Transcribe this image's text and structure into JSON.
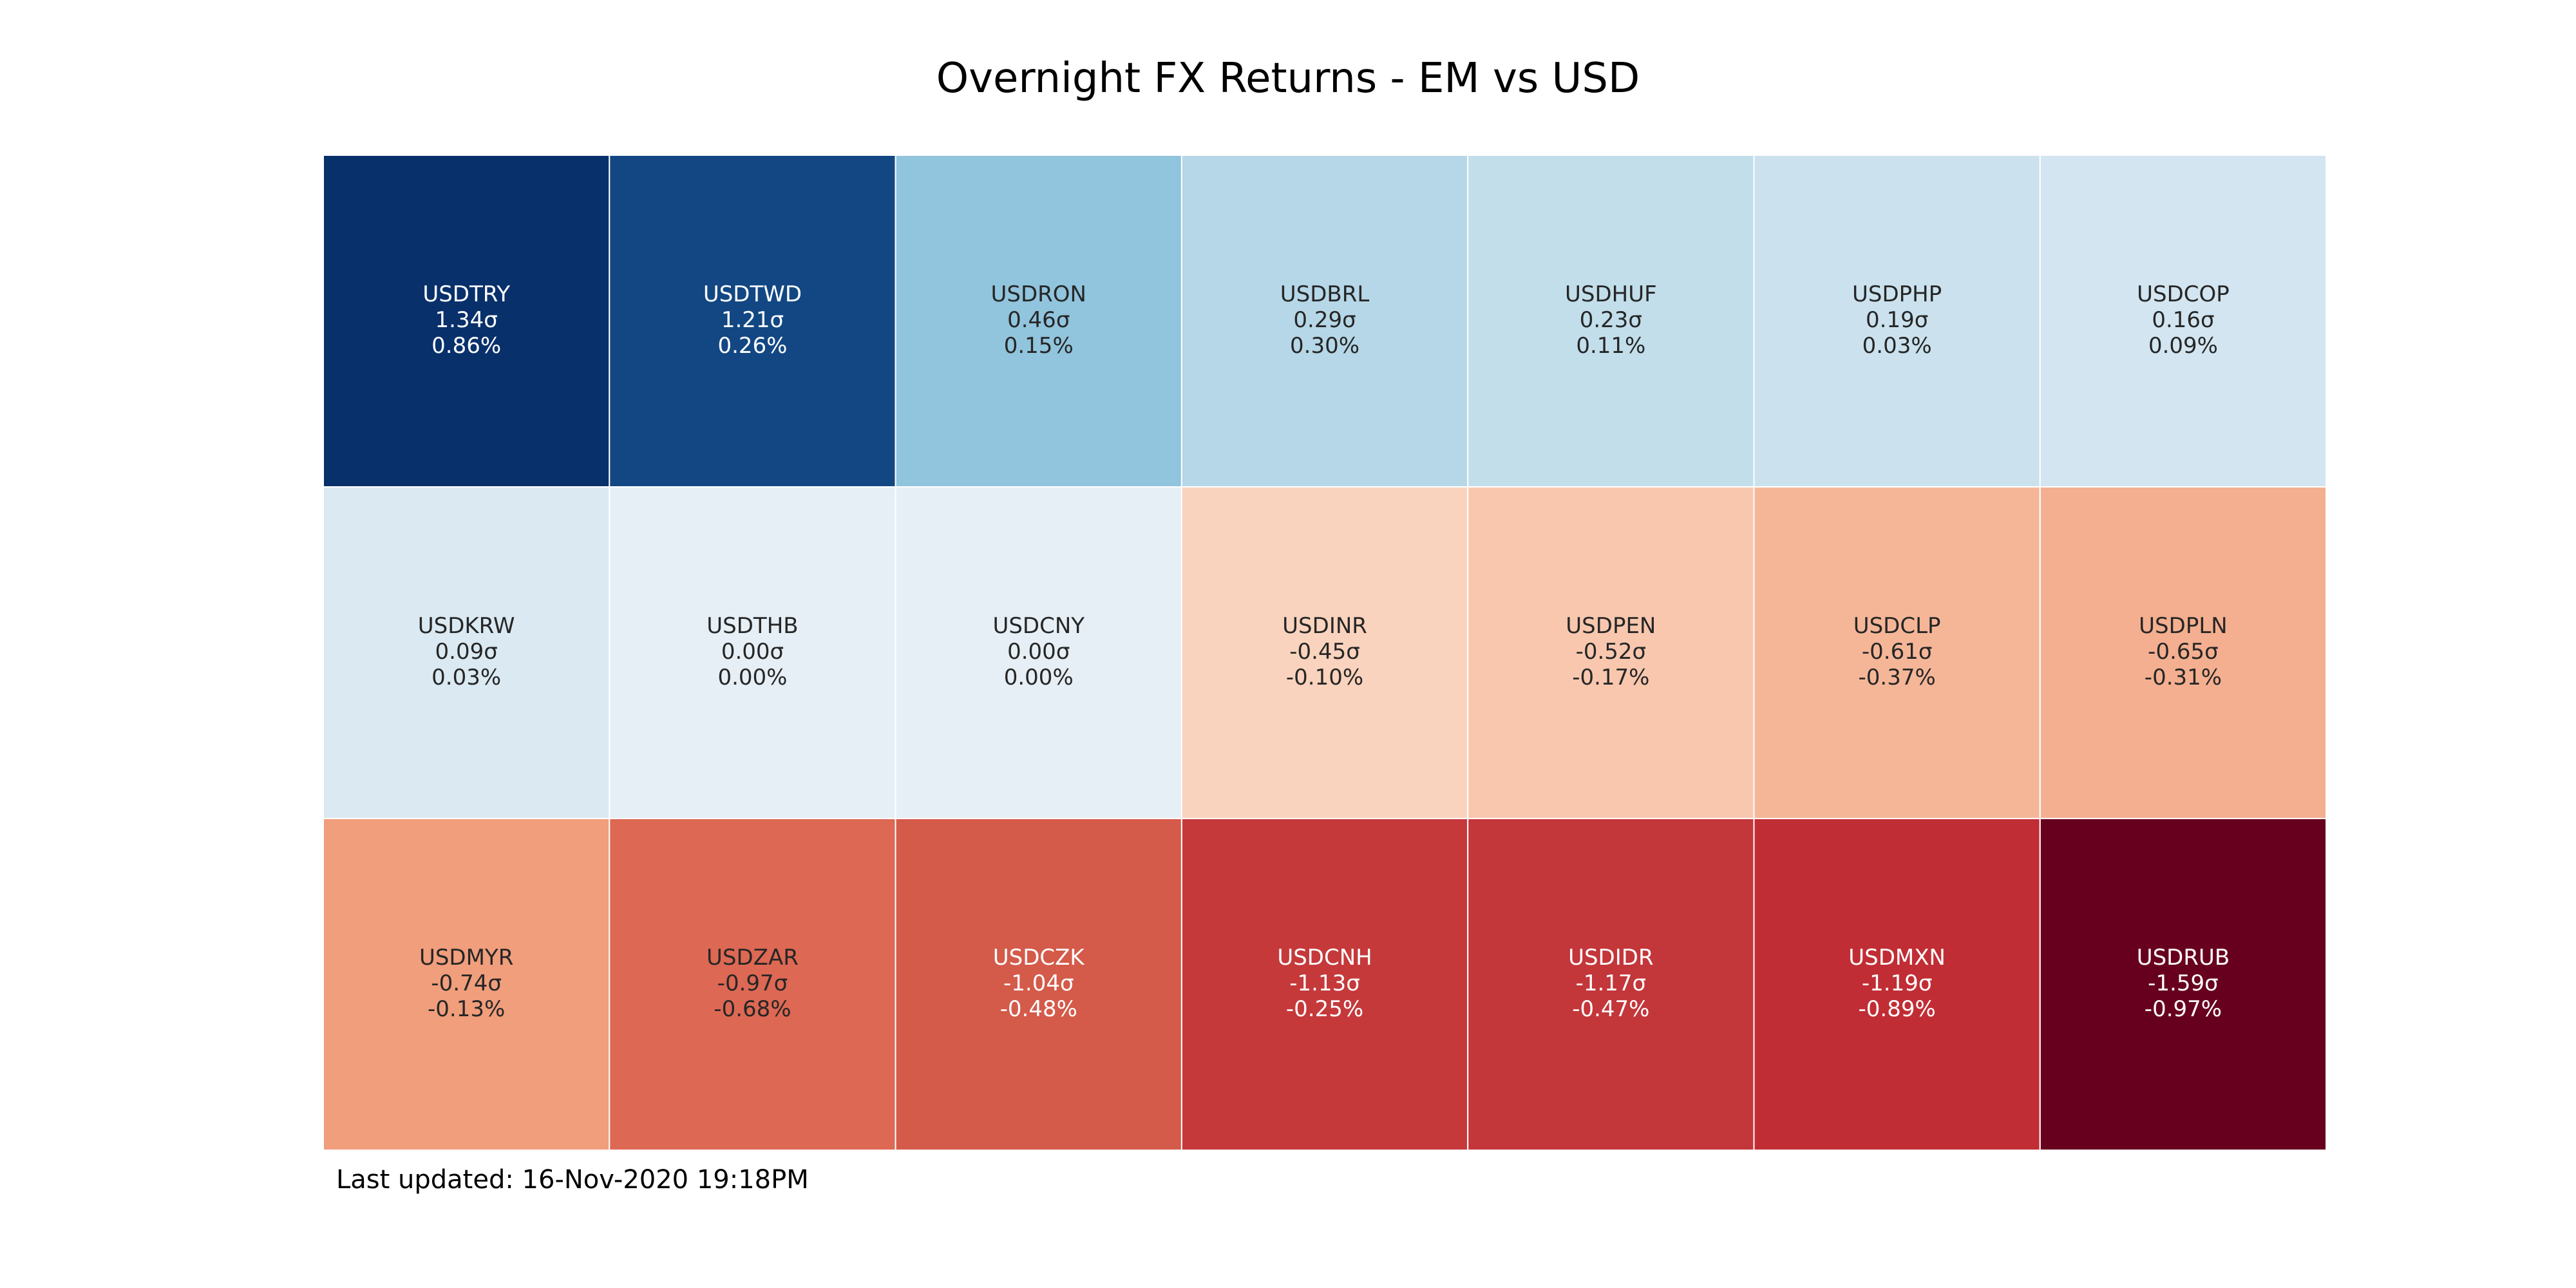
{
  "chart_data": {
    "type": "heatmap",
    "title": "Overnight FX Returns - EM vs USD",
    "footer": "Last updated: 16-Nov-2020 19:18PM",
    "grid": {
      "rows": 3,
      "cols": 7
    },
    "cells": [
      {
        "pair": "USDTRY",
        "sigma": 1.34,
        "sigma_label": "1.34σ",
        "return_label": "0.86%",
        "return_pct": 0.86,
        "color": "#08306b"
      },
      {
        "pair": "USDTWD",
        "sigma": 1.21,
        "sigma_label": "1.21σ",
        "return_label": "0.26%",
        "return_pct": 0.26,
        "color": "#124783"
      },
      {
        "pair": "USDRON",
        "sigma": 0.46,
        "sigma_label": "0.46σ",
        "return_label": "0.15%",
        "return_pct": 0.15,
        "color": "#91c4dd"
      },
      {
        "pair": "USDBRL",
        "sigma": 0.29,
        "sigma_label": "0.29σ",
        "return_label": "0.30%",
        "return_pct": 0.3,
        "color": "#b5d7e7"
      },
      {
        "pair": "USDHUF",
        "sigma": 0.23,
        "sigma_label": "0.23σ",
        "return_label": "0.11%",
        "return_pct": 0.11,
        "color": "#c2deeb"
      },
      {
        "pair": "USDPHP",
        "sigma": 0.19,
        "sigma_label": "0.19σ",
        "return_label": "0.03%",
        "return_pct": 0.03,
        "color": "#cbe2ee"
      },
      {
        "pair": "USDCOP",
        "sigma": 0.16,
        "sigma_label": "0.16σ",
        "return_label": "0.09%",
        "return_pct": 0.09,
        "color": "#d2e5f0"
      },
      {
        "pair": "USDKRW",
        "sigma": 0.09,
        "sigma_label": "0.09σ",
        "return_label": "0.03%",
        "return_pct": 0.03,
        "color": "#dae9f2"
      },
      {
        "pair": "USDTHB",
        "sigma": 0.0,
        "sigma_label": "0.00σ",
        "return_label": "0.00%",
        "return_pct": 0.0,
        "color": "#e6eff5"
      },
      {
        "pair": "USDCNY",
        "sigma": 0.0,
        "sigma_label": "0.00σ",
        "return_label": "0.00%",
        "return_pct": 0.0,
        "color": "#e6eff5"
      },
      {
        "pair": "USDINR",
        "sigma": -0.45,
        "sigma_label": "-0.45σ",
        "return_label": "-0.10%",
        "return_pct": -0.1,
        "color": "#f9d3bd"
      },
      {
        "pair": "USDPEN",
        "sigma": -0.52,
        "sigma_label": "-0.52σ",
        "return_label": "-0.17%",
        "return_pct": -0.17,
        "color": "#f8c7ae"
      },
      {
        "pair": "USDCLP",
        "sigma": -0.61,
        "sigma_label": "-0.61σ",
        "return_label": "-0.37%",
        "return_pct": -0.37,
        "color": "#f5b698"
      },
      {
        "pair": "USDPLN",
        "sigma": -0.65,
        "sigma_label": "-0.65σ",
        "return_label": "-0.31%",
        "return_pct": -0.31,
        "color": "#f4af90"
      },
      {
        "pair": "USDMYR",
        "sigma": -0.74,
        "sigma_label": "-0.74σ",
        "return_label": "-0.13%",
        "return_pct": -0.13,
        "color": "#f09e7c"
      },
      {
        "pair": "USDZAR",
        "sigma": -0.97,
        "sigma_label": "-0.97σ",
        "return_label": "-0.68%",
        "return_pct": -0.68,
        "color": "#dd6853"
      },
      {
        "pair": "USDCZK",
        "sigma": -1.04,
        "sigma_label": "-1.04σ",
        "return_label": "-0.48%",
        "return_pct": -0.48,
        "color": "#d45a4a"
      },
      {
        "pair": "USDCNH",
        "sigma": -1.13,
        "sigma_label": "-1.13σ",
        "return_label": "-0.25%",
        "return_pct": -0.25,
        "color": "#c5393b"
      },
      {
        "pair": "USDIDR",
        "sigma": -1.17,
        "sigma_label": "-1.17σ",
        "return_label": "-0.47%",
        "return_pct": -0.47,
        "color": "#c3363a"
      },
      {
        "pair": "USDMXN",
        "sigma": -1.19,
        "sigma_label": "-1.19σ",
        "return_label": "-0.89%",
        "return_pct": -0.89,
        "color": "#c12d35"
      },
      {
        "pair": "USDRUB",
        "sigma": -1.59,
        "sigma_label": "-1.59σ",
        "return_label": "-0.97%",
        "return_pct": -0.97,
        "color": "#67001f"
      }
    ],
    "colormap": "RdBu",
    "grid_lines": true,
    "legend": "none"
  }
}
